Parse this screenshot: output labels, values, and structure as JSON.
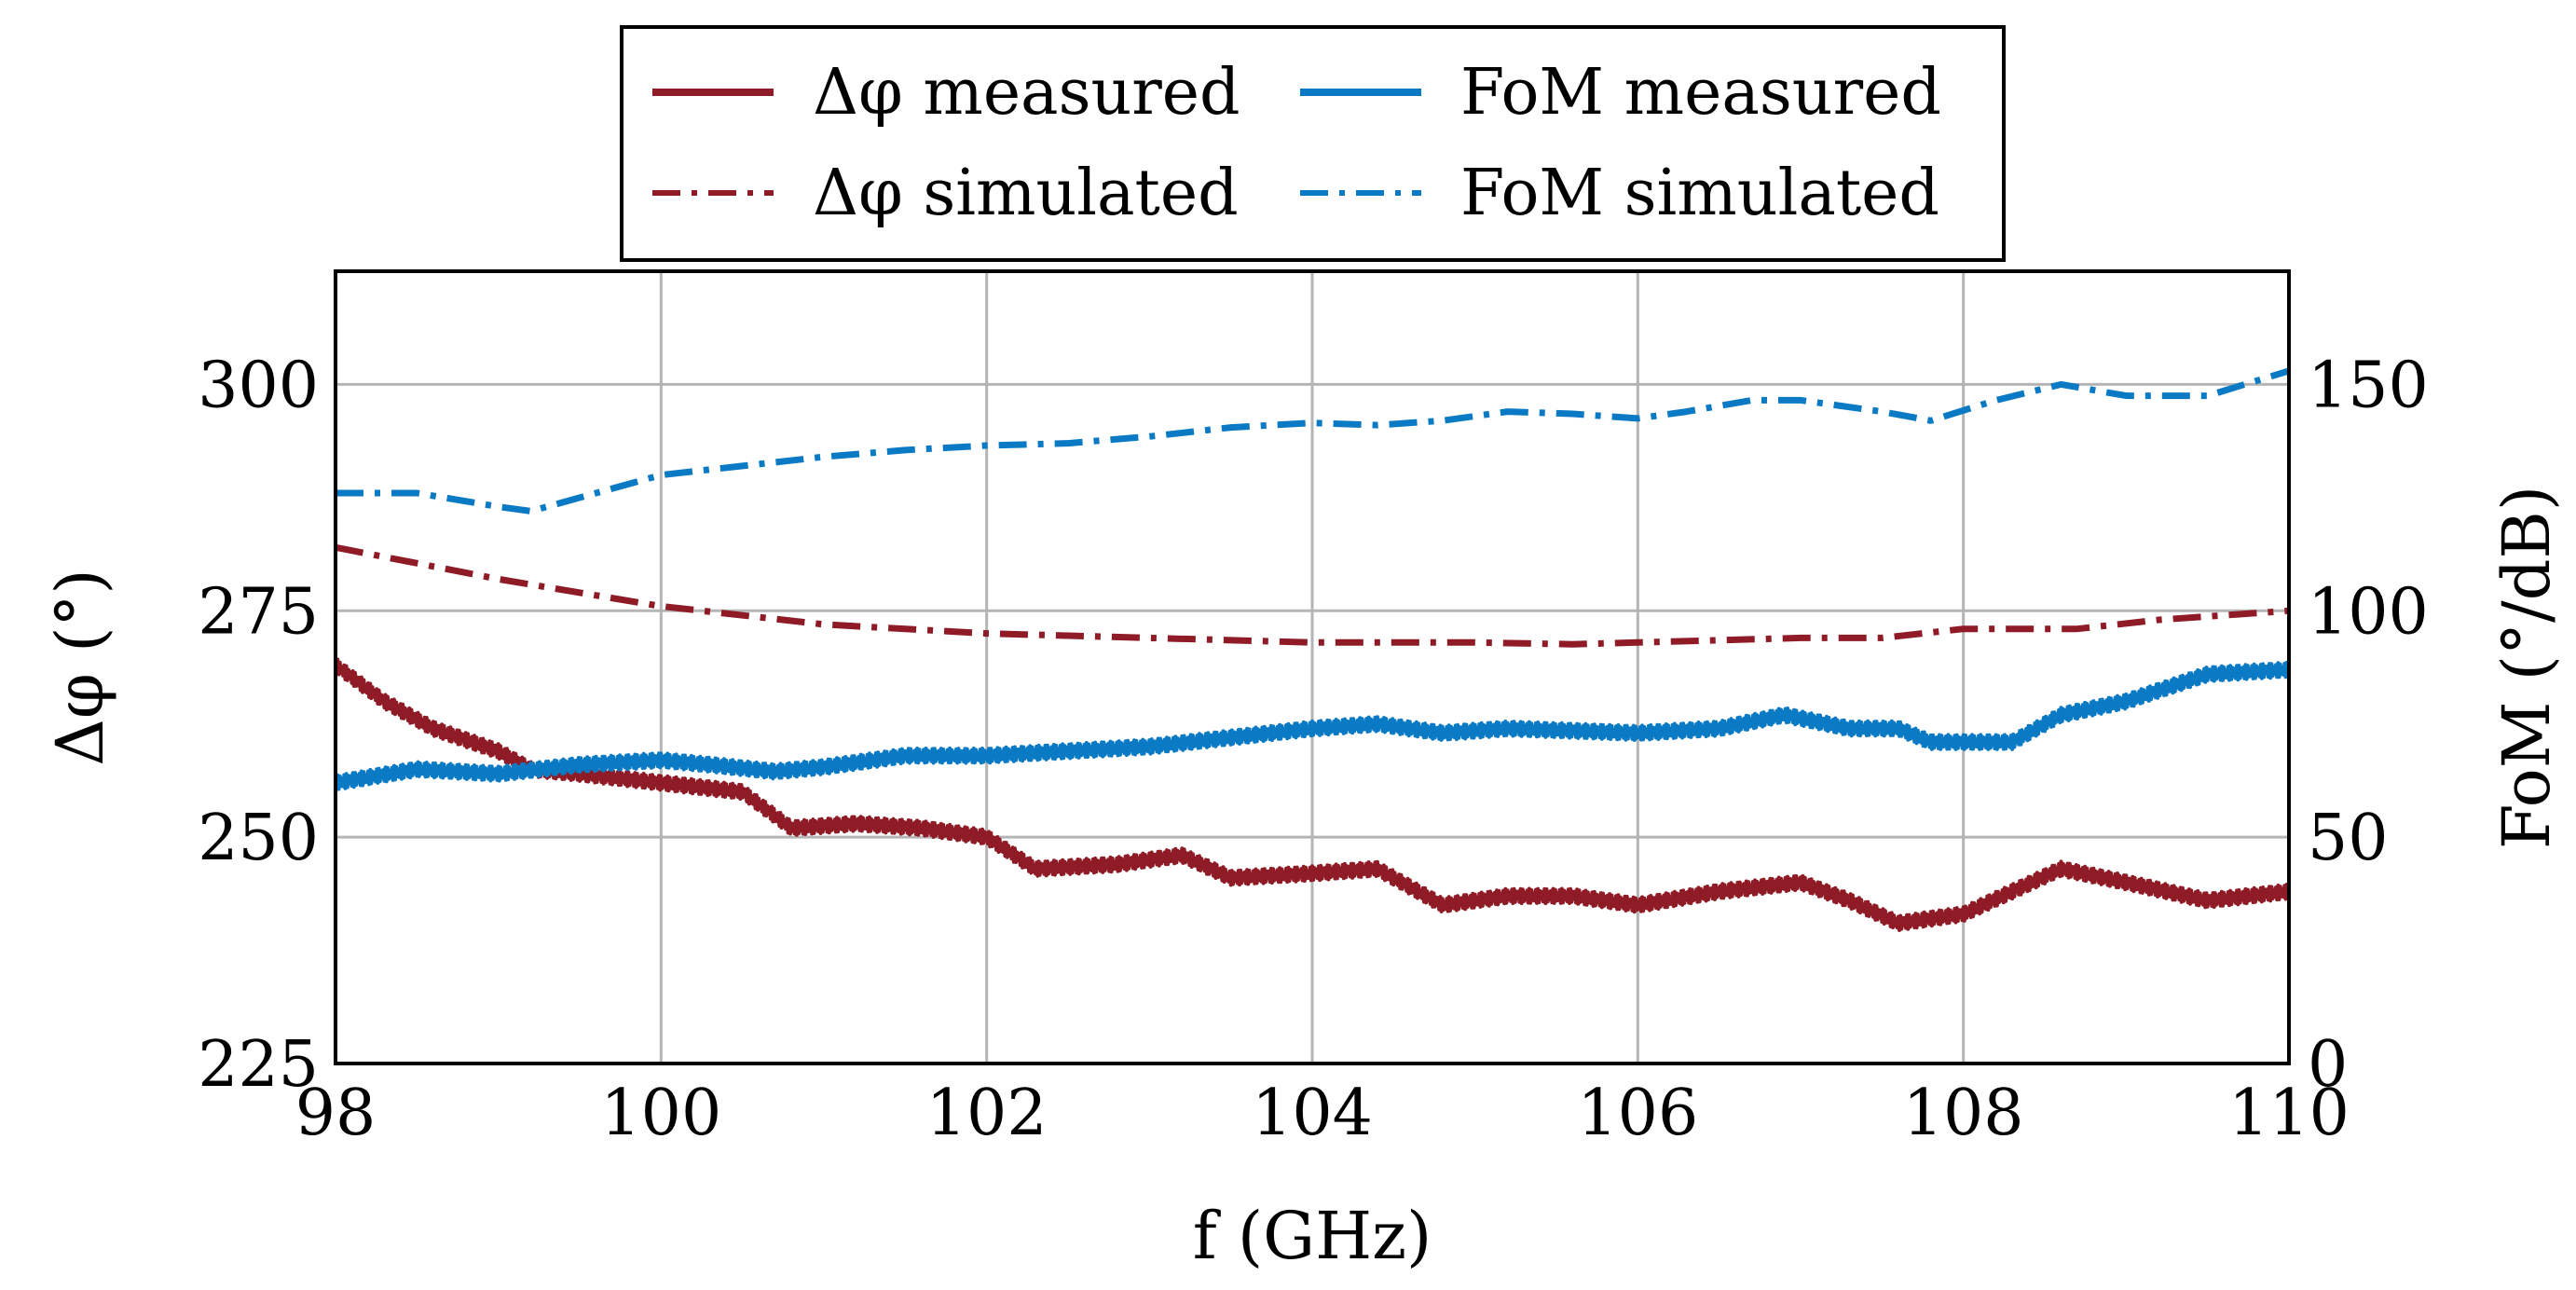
{
  "chart_data": {
    "type": "line",
    "x_axis": {
      "label": "f (GHz)",
      "range": [
        98,
        110
      ],
      "ticks": [
        98,
        100,
        102,
        104,
        106,
        108,
        110
      ]
    },
    "y_left": {
      "label": "Δφ (°)",
      "range": [
        225,
        312.5
      ],
      "ticks": [
        225,
        250,
        275,
        300
      ]
    },
    "y_right": {
      "label": "FoM (°/dB)",
      "range": [
        0,
        175
      ],
      "ticks": [
        0,
        50,
        100,
        150
      ]
    },
    "grid": true,
    "legend": {
      "placement": "top-center",
      "columns": 2,
      "order": [
        "phase_measured",
        "fom_measured",
        "phase_simulated",
        "fom_simulated"
      ]
    },
    "series": [
      {
        "id": "phase_measured",
        "name": "Δφ measured",
        "axis": "left",
        "style": "solid",
        "color": "#8e1b25",
        "noise": 0.8,
        "x": [
          98.0,
          98.3,
          98.6,
          99.0,
          99.2,
          99.5,
          100.0,
          100.5,
          100.8,
          101.2,
          101.6,
          102.0,
          102.3,
          102.8,
          103.2,
          103.5,
          104.0,
          104.4,
          104.8,
          105.2,
          105.6,
          106.0,
          106.5,
          107.0,
          107.3,
          107.6,
          108.0,
          108.3,
          108.6,
          109.0,
          109.5,
          110.0
        ],
        "y": [
          269,
          265,
          262,
          259.5,
          257.5,
          257,
          256,
          255,
          251,
          251.5,
          251,
          250,
          246.5,
          247,
          248,
          245.5,
          246,
          246.5,
          242.5,
          243.5,
          243.5,
          242.5,
          244,
          245,
          243,
          240.5,
          241.5,
          244,
          246.5,
          245,
          243,
          244
        ]
      },
      {
        "id": "phase_simulated",
        "name": "Δφ simulated",
        "axis": "left",
        "style": "dashdot",
        "color": "#8e1b25",
        "noise": 0,
        "x": [
          98.0,
          99.0,
          100.0,
          101.0,
          102.0,
          103.0,
          104.0,
          105.0,
          105.6,
          106.0,
          107.0,
          107.5,
          108.0,
          108.7,
          109.2,
          110.0
        ],
        "y": [
          282,
          278.5,
          275.5,
          273.5,
          272.5,
          272,
          271.5,
          271.5,
          271.3,
          271.5,
          272,
          272,
          273,
          273,
          274,
          275
        ]
      },
      {
        "id": "fom_measured",
        "name": "FoM measured",
        "axis": "right",
        "style": "solid",
        "color": "#0b7ac4",
        "noise": 1.6,
        "x": [
          98.0,
          98.5,
          99.0,
          99.5,
          100.0,
          100.3,
          100.7,
          101.0,
          101.5,
          102.0,
          102.5,
          103.0,
          103.5,
          104.0,
          104.4,
          104.8,
          105.2,
          105.6,
          106.0,
          106.5,
          106.9,
          107.3,
          107.6,
          107.8,
          108.0,
          108.3,
          108.6,
          109.0,
          109.5,
          110.0
        ],
        "y": [
          62,
          65,
          64,
          66,
          67,
          66,
          64.5,
          65.5,
          68,
          68,
          69,
          70,
          72,
          74,
          75,
          73,
          74,
          73.5,
          73,
          74,
          77,
          74,
          74,
          71,
          71,
          71,
          77,
          80,
          86,
          87
        ]
      },
      {
        "id": "fom_simulated",
        "name": "FoM simulated",
        "axis": "right",
        "style": "dashdot",
        "color": "#0b7ac4",
        "noise": 0,
        "x": [
          98.0,
          98.5,
          99.0,
          99.2,
          99.5,
          100.0,
          100.5,
          101.0,
          101.5,
          102.0,
          102.5,
          103.0,
          103.5,
          104.0,
          104.4,
          104.8,
          105.2,
          105.6,
          106.0,
          106.3,
          106.7,
          107.0,
          107.5,
          107.8,
          108.2,
          108.6,
          109.0,
          109.5,
          110.0
        ],
        "y": [
          126,
          126,
          123,
          122,
          125,
          130,
          132,
          134,
          135.5,
          136.5,
          137,
          138.5,
          140.5,
          141.5,
          141,
          142,
          144,
          143.5,
          142.5,
          144,
          146.5,
          146.5,
          144,
          142,
          146.5,
          150,
          147.5,
          147.5,
          153
        ]
      }
    ]
  }
}
